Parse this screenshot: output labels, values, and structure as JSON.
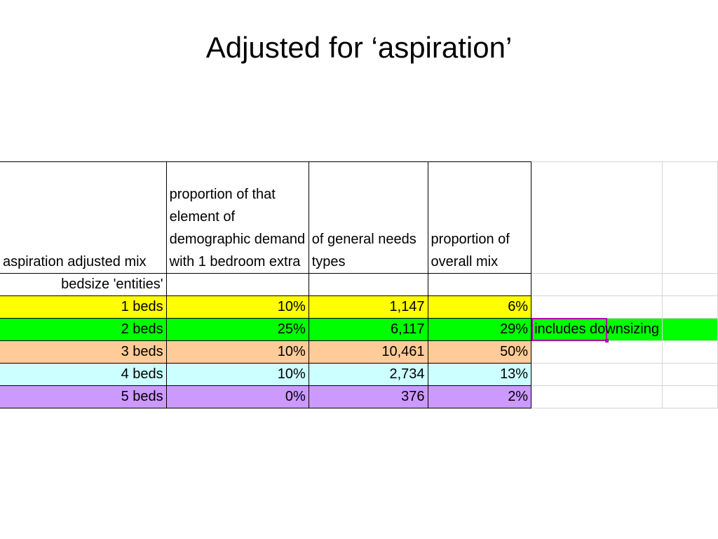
{
  "slide": {
    "title": "Adjusted for ‘aspiration’"
  },
  "table": {
    "headers": [
      "aspiration adjusted mix",
      "proportion of that element of demographic demand with 1 bedroom extra",
      "of general needs types",
      "proportion of overall mix"
    ],
    "subheader": "bedsize 'entities'",
    "rows": [
      {
        "label": "1 beds",
        "extra": "10%",
        "general_needs": "1,147",
        "overall_mix": "6%",
        "color": "#ffff00"
      },
      {
        "label": "2 beds",
        "extra": "25%",
        "general_needs": "6,117",
        "overall_mix": "29%",
        "color": "#00ff00"
      },
      {
        "label": "3 beds",
        "extra": "10%",
        "general_needs": "10,461",
        "overall_mix": "50%",
        "color": "#ffcc99"
      },
      {
        "label": "4 beds",
        "extra": "10%",
        "general_needs": "2,734",
        "overall_mix": "13%",
        "color": "#ccffff"
      },
      {
        "label": "5 beds",
        "extra": "0%",
        "general_needs": "376",
        "overall_mix": "2%",
        "color": "#cc99ff"
      }
    ],
    "note": "includes downsizing",
    "selection_color": "#b000b0"
  }
}
